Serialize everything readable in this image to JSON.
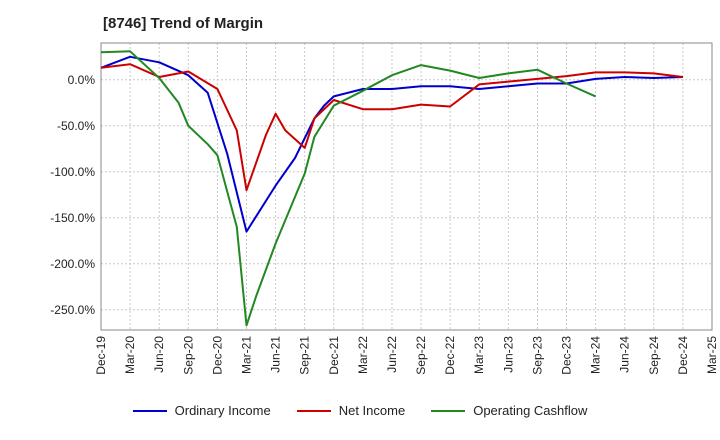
{
  "title": "[8746]  Trend of Margin",
  "chart_data": {
    "type": "line",
    "title": "[8746]  Trend of Margin",
    "xlabel": "",
    "ylabel": "",
    "x": [
      "Dec-19",
      "Mar-20",
      "Jun-20",
      "Sep-20",
      "Dec-20",
      "Mar-21",
      "Jun-21",
      "Sep-21",
      "Dec-21",
      "Mar-22",
      "Jun-22",
      "Sep-22",
      "Dec-22",
      "Mar-23",
      "Jun-23",
      "Sep-23",
      "Dec-23",
      "Mar-24",
      "Jun-24",
      "Sep-24",
      "Dec-24",
      "Mar-25"
    ],
    "y_ticks": [
      0,
      -50,
      -100,
      -150,
      -200,
      -250
    ],
    "y_tick_labels": [
      "0.0%",
      "-50.0%",
      "-100.0%",
      "-150.0%",
      "-200.0%",
      "-250.0%"
    ],
    "ylim": [
      -272,
      40
    ],
    "grid": "horizontal dashed",
    "legend_position": "bottom",
    "series": [
      {
        "name": "Ordinary Income",
        "color": "#0000cc",
        "points": [
          [
            "Dec-19",
            13
          ],
          [
            "Mar-20",
            25
          ],
          [
            "Jun-20",
            19
          ],
          [
            "Sep-20",
            5
          ],
          [
            "Nov-20",
            -14
          ],
          [
            "Jan-21",
            -80
          ],
          [
            "Mar-21",
            -165
          ],
          [
            "Jun-21",
            -115
          ],
          [
            "Aug-21",
            -85
          ],
          [
            "Oct-21",
            -42
          ],
          [
            "Nov-21",
            -28
          ],
          [
            "Dec-21",
            -18
          ],
          [
            "Mar-22",
            -10
          ],
          [
            "Jun-22",
            -10
          ],
          [
            "Sep-22",
            -7
          ],
          [
            "Dec-22",
            -7
          ],
          [
            "Mar-23",
            -10
          ],
          [
            "Jun-23",
            -7
          ],
          [
            "Sep-23",
            -4
          ],
          [
            "Dec-23",
            -4
          ],
          [
            "Mar-24",
            1
          ],
          [
            "Jun-24",
            3
          ],
          [
            "Sep-24",
            2
          ],
          [
            "Dec-24",
            3
          ]
        ]
      },
      {
        "name": "Net Income",
        "color": "#cc0000",
        "points": [
          [
            "Dec-19",
            13
          ],
          [
            "Mar-20",
            17
          ],
          [
            "Jun-20",
            3
          ],
          [
            "Sep-20",
            9
          ],
          [
            "Dec-20",
            -10
          ],
          [
            "Feb-21",
            -55
          ],
          [
            "Mar-21",
            -120
          ],
          [
            "May-21",
            -60
          ],
          [
            "Jun-21",
            -37
          ],
          [
            "Jul-21",
            -55
          ],
          [
            "Sep-21",
            -74
          ],
          [
            "Oct-21",
            -42
          ],
          [
            "Dec-21",
            -22
          ],
          [
            "Mar-22",
            -32
          ],
          [
            "Jun-22",
            -32
          ],
          [
            "Sep-22",
            -27
          ],
          [
            "Dec-22",
            -29
          ],
          [
            "Mar-23",
            -5
          ],
          [
            "Jun-23",
            -2
          ],
          [
            "Sep-23",
            1
          ],
          [
            "Dec-23",
            4
          ],
          [
            "Mar-24",
            8
          ],
          [
            "Jun-24",
            8
          ],
          [
            "Sep-24",
            7
          ],
          [
            "Dec-24",
            3
          ]
        ]
      },
      {
        "name": "Operating Cashflow",
        "color": "#228822",
        "points": [
          [
            "Dec-19",
            30
          ],
          [
            "Mar-20",
            31
          ],
          [
            "Jun-20",
            2
          ],
          [
            "Aug-20",
            -25
          ],
          [
            "Sep-20",
            -50
          ],
          [
            "Nov-20",
            -70
          ],
          [
            "Dec-20",
            -82
          ],
          [
            "Feb-21",
            -160
          ],
          [
            "Mar-21",
            -267
          ],
          [
            "Apr-21",
            -235
          ],
          [
            "Jun-21",
            -178
          ],
          [
            "Sep-21",
            -102
          ],
          [
            "Oct-21",
            -62
          ],
          [
            "Dec-21",
            -28
          ],
          [
            "Mar-22",
            -12
          ],
          [
            "Jun-22",
            5
          ],
          [
            "Sep-22",
            16
          ],
          [
            "Dec-22",
            10
          ],
          [
            "Mar-23",
            2
          ],
          [
            "Jun-23",
            7
          ],
          [
            "Sep-23",
            11
          ],
          [
            "Dec-23",
            -4
          ],
          [
            "Mar-24",
            -18
          ]
        ]
      }
    ]
  }
}
